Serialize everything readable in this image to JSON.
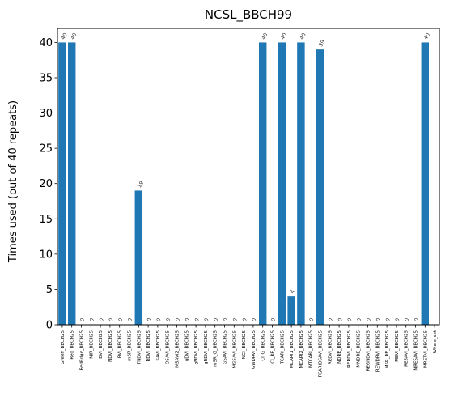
{
  "chart_data": {
    "type": "bar",
    "title": "NCSL_BBCH99",
    "xlabel": "",
    "ylabel": "Times used (out of 40 repeats)",
    "ylim": [
      0,
      42
    ],
    "yticks": [
      0,
      5,
      10,
      15,
      20,
      25,
      30,
      35,
      40
    ],
    "grid": false,
    "bar_color": "#1f77b4",
    "categories": [
      "Green_BBCH25",
      "Red_BBCH25",
      "RedEdge_BBCH25",
      "NIR_BBCH25",
      "DVI_BBCH25",
      "NDVI_BBCH25",
      "RVI_BBCH25",
      "mSR_BBCH25",
      "TNDVI_BBCH25",
      "RDVI_BBCH25",
      "SAVI_BBCH25",
      "OSAVI_BBCH25",
      "MSAVI2_BBCH25",
      "gDVI_BBCH25",
      "gNDVI_BBCH25",
      "gRDVI_BBCH25",
      "mSR_G_BBCH25",
      "GSAVI_BBCH25",
      "MGSAVI_BBCH25",
      "NGI_BBCH25",
      "GWDRVI_BBCH25",
      "CI_G_BBCH25",
      "CI_RE_BBCH25",
      "TCARI_BBCH25",
      "MCARI1_BBCH25",
      "MCARI2_BBCH25",
      "MTCARI_BBCH25",
      "TCARIOSAVI_BBCH25",
      "REDVI_BBCH25",
      "NDRE_BBCH25",
      "RERDVI_BBCH25",
      "MNDRE_BBCH25",
      "REGNDVI_BBCH25",
      "REWDRVI_BBCH25",
      "MSR_RE_BBCH25",
      "MEVI_BBCH25",
      "RESAVI_BBCH25",
      "MRESAVI_BBCH25",
      "MRETVI_BBCH25",
      "Whole_set"
    ],
    "values": [
      40,
      40,
      0,
      0,
      0,
      0,
      0,
      0,
      19,
      0,
      0,
      0,
      0,
      0,
      0,
      0,
      0,
      0,
      0,
      0,
      0,
      40,
      0,
      40,
      4,
      40,
      0,
      39,
      0,
      0,
      0,
      0,
      0,
      0,
      0,
      0,
      0,
      0,
      40,
      null
    ]
  }
}
